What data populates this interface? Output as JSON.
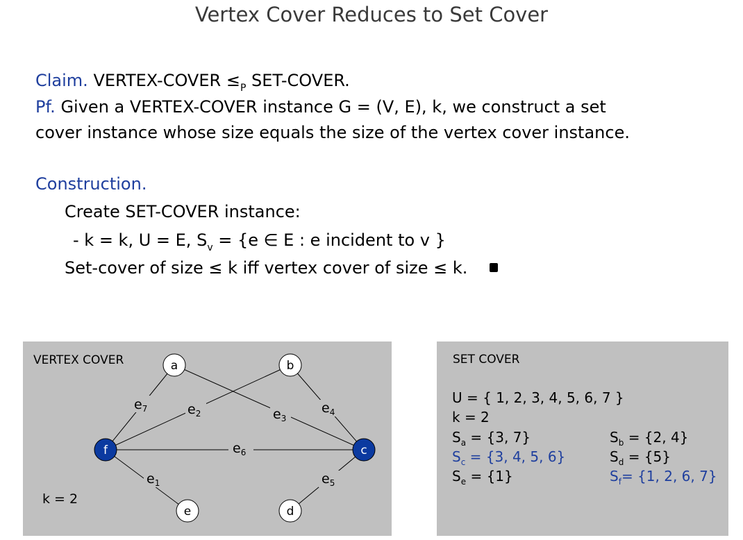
{
  "title": "Vertex Cover Reduces to Set Cover",
  "claim": {
    "label": "Claim.",
    "lhs": "VERTEX-COVER",
    "rel": "≤",
    "rel_sub": "P",
    "rhs": "SET-COVER."
  },
  "proof": {
    "label": "Pf.",
    "line1": "Given a VERTEX-COVER instance G = (V, E), k, we construct a set",
    "line2": "cover instance whose size equals the size of the vertex cover instance."
  },
  "construction": {
    "label": "Construction.",
    "create": "Create SET-COVER instance:",
    "def_prefix": "- k = k,  U = E,  S",
    "def_sub": "v",
    "def_suffix": " = {e ∈ E : e incident to v }",
    "iff": "Set-cover of size ≤ k iff vertex cover of size ≤ k."
  },
  "vertex_cover": {
    "heading": "VERTEX COVER",
    "k_label": "k = 2",
    "nodes": {
      "a": "a",
      "b": "b",
      "c": "c",
      "d": "d",
      "e": "e",
      "f": "f"
    },
    "edges": {
      "e1": {
        "base": "e",
        "sub": "1"
      },
      "e2": {
        "base": "e",
        "sub": "2"
      },
      "e3": {
        "base": "e",
        "sub": "3"
      },
      "e4": {
        "base": "e",
        "sub": "4"
      },
      "e5": {
        "base": "e",
        "sub": "5"
      },
      "e6": {
        "base": "e",
        "sub": "6"
      },
      "e7": {
        "base": "e",
        "sub": "7"
      }
    },
    "highlight_color": "#0b3aa0"
  },
  "set_cover": {
    "heading": "SET COVER",
    "universe": "U = { 1, 2, 3, 4, 5, 6, 7 }",
    "k": "k = 2",
    "sets": {
      "a": {
        "name": "S",
        "sub": "a",
        "value": "= {3, 7}"
      },
      "b": {
        "name": "S",
        "sub": "b",
        "value": "= {2, 4}"
      },
      "c": {
        "name": "S",
        "sub": "c",
        "value": "= {3, 4, 5, 6}"
      },
      "d": {
        "name": "S",
        "sub": "d",
        "value": "= {5}"
      },
      "e": {
        "name": "S",
        "sub": "e",
        "value": "= {1}"
      },
      "f": {
        "name": "S",
        "sub": "f",
        "value": "= {1, 2, 6, 7}"
      }
    },
    "highlight_color": "#1f3f9e"
  }
}
